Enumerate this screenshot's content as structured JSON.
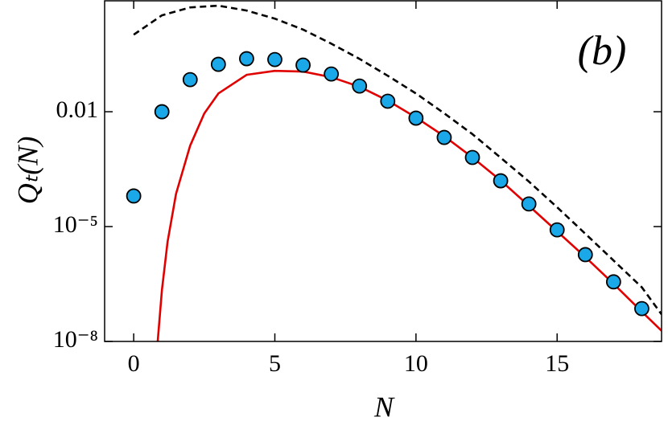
{
  "chart_data": {
    "type": "line",
    "xlabel": "N",
    "ylabel": "Qₜ(N)",
    "annotation": "(b)",
    "log_y": true,
    "xlim": [
      -1.03,
      18.7
    ],
    "ylim": [
      1e-08,
      7.9
    ],
    "xticks": [
      0,
      5,
      10,
      15
    ],
    "yticks": [
      0.01,
      {
        "value": 1e-05,
        "label": "10⁻⁵"
      },
      {
        "value": 1e-08,
        "label": "10⁻⁸"
      }
    ],
    "series": [
      {
        "mode": "dashed-line",
        "color": "#000000",
        "x": [
          0,
          1,
          2,
          3,
          4,
          5,
          6,
          7,
          8,
          9,
          10,
          11,
          12,
          13,
          14,
          15,
          16,
          17,
          18,
          18.7
        ],
        "values": [
          1.03,
          3.3,
          5.3,
          5.9,
          4.4,
          2.7,
          1.4,
          0.6,
          0.24,
          0.087,
          0.03,
          0.0091,
          0.0026,
          0.00063,
          0.00015,
          3.2e-05,
          6.5e-06,
          1.3e-06,
          2.6e-07,
          5.1e-08
        ]
      },
      {
        "mode": "line",
        "color": "#e00000",
        "x": [
          0.85,
          1,
          1.2,
          1.5,
          2,
          2.5,
          3,
          4,
          5,
          6,
          7,
          8,
          9,
          10,
          11,
          12,
          13,
          14,
          15,
          16,
          17,
          18,
          18.7
        ],
        "values": [
          1e-08,
          2.2e-07,
          4e-06,
          7.2e-05,
          0.0013,
          0.009,
          0.03,
          0.092,
          0.117,
          0.112,
          0.08,
          0.045,
          0.0196,
          0.0071,
          0.0023,
          0.00064,
          0.00016,
          3.5e-05,
          7.5e-06,
          1.6e-06,
          3.2e-07,
          6e-08,
          1.9e-08
        ]
      },
      {
        "mode": "markers",
        "color": "#1aa8e8",
        "x": [
          0,
          1,
          2,
          3,
          4,
          5,
          6,
          7,
          8,
          9,
          10,
          11,
          12,
          13,
          14,
          15,
          16,
          17,
          18
        ],
        "values": [
          6.3e-05,
          0.01,
          0.069,
          0.173,
          0.243,
          0.231,
          0.165,
          0.0968,
          0.0469,
          0.0188,
          0.0068,
          0.00213,
          0.00064,
          0.000157,
          3.9e-05,
          8.2e-06,
          1.85e-06,
          3.6e-07,
          7.2e-08
        ]
      }
    ]
  }
}
